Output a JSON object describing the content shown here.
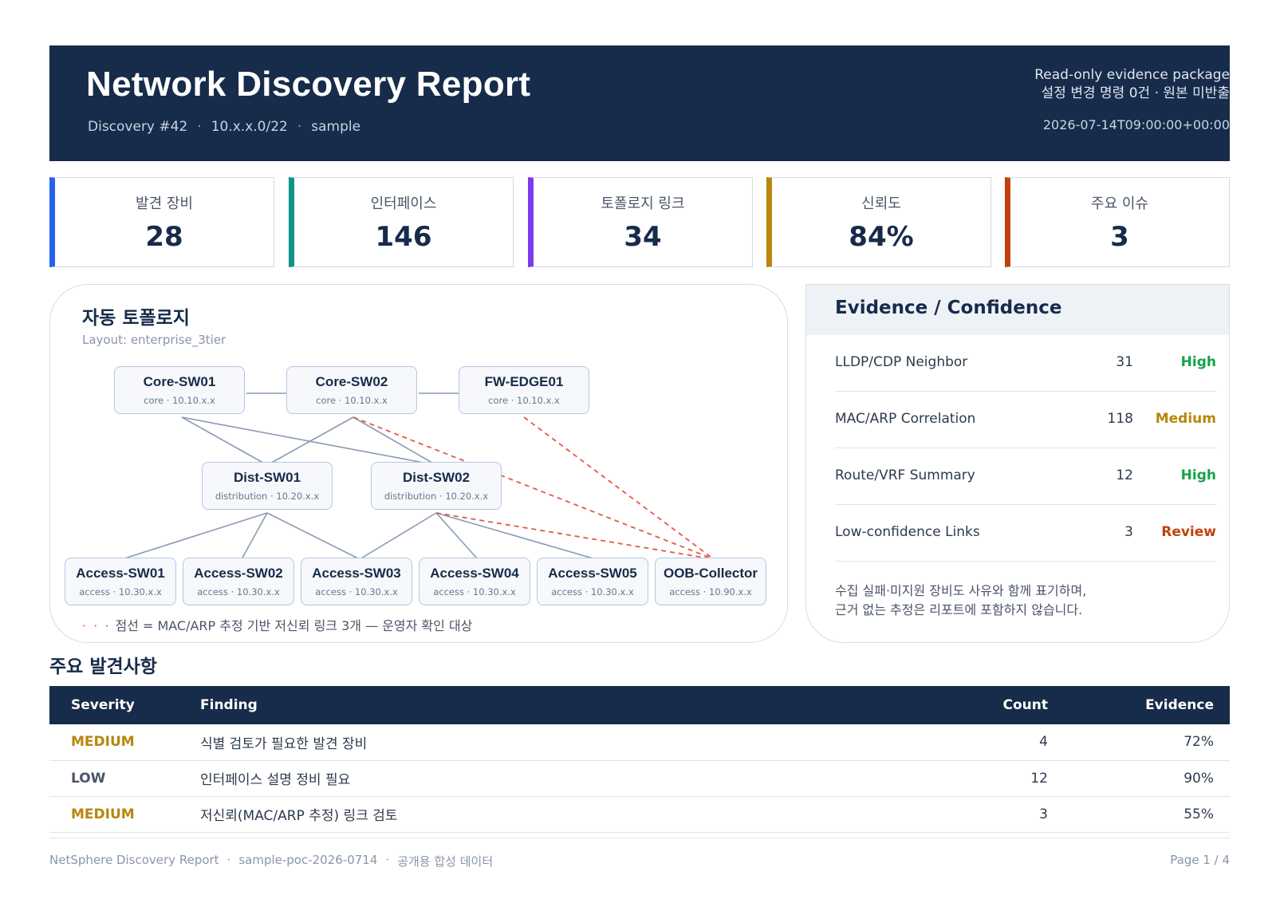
{
  "header": {
    "title": "Network Discovery Report",
    "discovery_id": "Discovery #42",
    "subnet": "10.x.x.0/22",
    "mode": "sample",
    "package_label": "Read-only evidence package",
    "package_note": "설정 변경 명령 0건 · 원본 미반출",
    "timestamp": "2026-07-14T09:00:00+00:00"
  },
  "kpis": [
    {
      "label": "발견 장비",
      "value": "28",
      "color": "#2563eb"
    },
    {
      "label": "인터페이스",
      "value": "146",
      "color": "#0f9488"
    },
    {
      "label": "토폴로지 링크",
      "value": "34",
      "color": "#7c3aed"
    },
    {
      "label": "신뢰도",
      "value": "84%",
      "color": "#b8860b"
    },
    {
      "label": "주요 이슈",
      "value": "3",
      "color": "#c2410c"
    }
  ],
  "topology": {
    "title": "자동 토폴로지",
    "layout": "Layout: enterprise_3tier",
    "nodes": [
      {
        "name": "Core-SW01",
        "meta": "core · 10.10.x.x"
      },
      {
        "name": "Core-SW02",
        "meta": "core · 10.10.x.x"
      },
      {
        "name": "FW-EDGE01",
        "meta": "core · 10.10.x.x"
      },
      {
        "name": "Dist-SW01",
        "meta": "distribution · 10.20.x.x"
      },
      {
        "name": "Dist-SW02",
        "meta": "distribution · 10.20.x.x"
      },
      {
        "name": "Access-SW01",
        "meta": "access · 10.30.x.x"
      },
      {
        "name": "Access-SW02",
        "meta": "access · 10.30.x.x"
      },
      {
        "name": "Access-SW03",
        "meta": "access · 10.30.x.x"
      },
      {
        "name": "Access-SW04",
        "meta": "access · 10.30.x.x"
      },
      {
        "name": "Access-SW05",
        "meta": "access · 10.30.x.x"
      },
      {
        "name": "OOB-Collector",
        "meta": "access · 10.90.x.x"
      }
    ],
    "legend_dots": "· · ·",
    "legend_text": "점선 = MAC/ARP 추정 기반 저신뢰 링크 3개 — 운영자 확인 대상"
  },
  "evidence": {
    "title": "Evidence / Confidence",
    "rows": [
      {
        "source": "LLDP/CDP Neighbor",
        "count": "31",
        "level": "High",
        "color": "#16a34a"
      },
      {
        "source": "MAC/ARP Correlation",
        "count": "118",
        "level": "Medium",
        "color": "#b8860b"
      },
      {
        "source": "Route/VRF Summary",
        "count": "12",
        "level": "High",
        "color": "#16a34a"
      },
      {
        "source": "Low-confidence Links",
        "count": "3",
        "level": "Review",
        "color": "#c2410c"
      }
    ],
    "note_line1": "수집 실패·미지원 장비도 사유와 함께 표기하며,",
    "note_line2": "근거 없는 추정은 리포트에 포함하지 않습니다."
  },
  "findings": {
    "title": "주요 발견사항",
    "columns": {
      "severity": "Severity",
      "finding": "Finding",
      "count": "Count",
      "evidence": "Evidence"
    },
    "rows": [
      {
        "severity": "MEDIUM",
        "finding": "식별 검토가 필요한 발견 장비",
        "count": "4",
        "evidence": "72%",
        "color": "#b8860b"
      },
      {
        "severity": "LOW",
        "finding": "인터페이스 설명 정비 필요",
        "count": "12",
        "evidence": "90%",
        "color": "#4a5568"
      },
      {
        "severity": "MEDIUM",
        "finding": "저신뢰(MAC/ARP 추정) 링크 검토",
        "count": "3",
        "evidence": "55%",
        "color": "#b8860b"
      }
    ]
  },
  "footer": {
    "product": "NetSphere Discovery Report",
    "report_id": "sample-poc-2026-0714",
    "data_note": "공개용 합성 데이터",
    "page": "Page 1 / 4"
  }
}
